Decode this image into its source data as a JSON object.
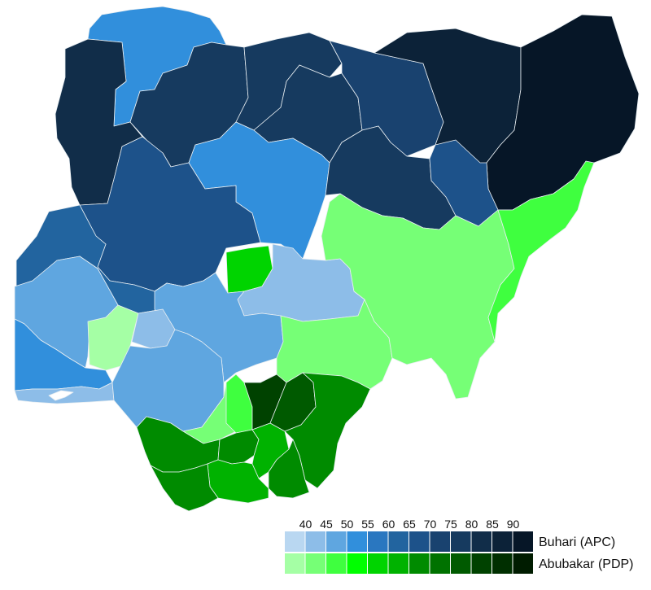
{
  "legend": {
    "thresholds": [
      "40",
      "45",
      "50",
      "55",
      "60",
      "65",
      "70",
      "75",
      "80",
      "85",
      "90"
    ],
    "candidates": [
      {
        "label": "Buhari (APC)",
        "colors": [
          "#b9d7f1",
          "#8dbde8",
          "#5fa6e0",
          "#318fdc",
          "#2a77c0",
          "#22649f",
          "#1d528a",
          "#19426f",
          "#163a5f",
          "#112d49",
          "#0c2238",
          "#061627"
        ]
      },
      {
        "label": "Abubakar (PDP)",
        "colors": [
          "#a5ffa5",
          "#76ff76",
          "#3fff3f",
          "#00ff00",
          "#00d400",
          "#00b200",
          "#008b00",
          "#007200",
          "#005a00",
          "#004200",
          "#002f00",
          "#001c00"
        ]
      }
    ]
  },
  "map": {
    "regions": [
      {
        "name": "sokoto",
        "color": "#318fdc"
      },
      {
        "name": "kebbi",
        "color": "#112d49"
      },
      {
        "name": "zamfara",
        "color": "#163a5f"
      },
      {
        "name": "katsina",
        "color": "#163a5f"
      },
      {
        "name": "kano",
        "color": "#163a5f"
      },
      {
        "name": "jigawa",
        "color": "#19426f"
      },
      {
        "name": "yobe",
        "color": "#0c2238"
      },
      {
        "name": "borno",
        "color": "#061627"
      },
      {
        "name": "kaduna",
        "color": "#318fdc"
      },
      {
        "name": "niger",
        "color": "#1d528a"
      },
      {
        "name": "bauchi",
        "color": "#163a5f"
      },
      {
        "name": "gombe",
        "color": "#1d528a"
      },
      {
        "name": "kwara",
        "color": "#22649f"
      },
      {
        "name": "abuja",
        "color": "#00d400"
      },
      {
        "name": "plateau",
        "color": "#8dbde8"
      },
      {
        "name": "nasarawa",
        "color": "#5fa6e0"
      },
      {
        "name": "kogi",
        "color": "#5fa6e0"
      },
      {
        "name": "oyo",
        "color": "#a5ffa5"
      },
      {
        "name": "osun",
        "color": "#8dbde8"
      },
      {
        "name": "ekiti",
        "color": "#318fdc"
      },
      {
        "name": "ogun",
        "color": "#8dbde8"
      },
      {
        "name": "lagos",
        "color": "#5fa6e0"
      },
      {
        "name": "ondo",
        "color": "#76ff76"
      },
      {
        "name": "edo",
        "color": "#76ff76"
      },
      {
        "name": "benue",
        "color": "#76ff76"
      },
      {
        "name": "taraba",
        "color": "#3fff3f"
      },
      {
        "name": "adamawa",
        "color": "#3fff3f"
      },
      {
        "name": "anambra",
        "color": "#004200"
      },
      {
        "name": "enugu",
        "color": "#005a00"
      },
      {
        "name": "ebonyi",
        "color": "#008b00"
      },
      {
        "name": "cross-river",
        "color": "#008b00"
      },
      {
        "name": "delta",
        "color": "#008b00"
      },
      {
        "name": "imo",
        "color": "#00b200"
      },
      {
        "name": "abia",
        "color": "#008b00"
      },
      {
        "name": "akwa-ibom",
        "color": "#00b200"
      },
      {
        "name": "rivers",
        "color": "#008b00"
      },
      {
        "name": "bayelsa",
        "color": "#00d400"
      }
    ]
  }
}
